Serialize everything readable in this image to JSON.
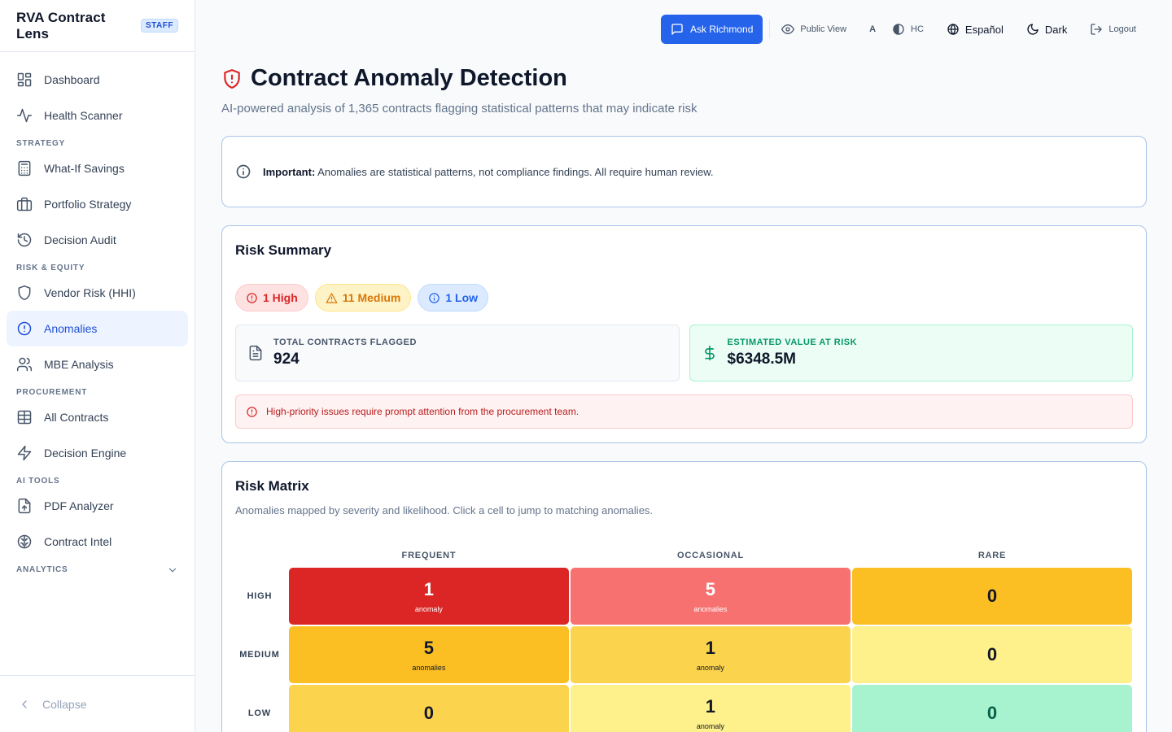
{
  "app": {
    "title": "RVA Contract Lens",
    "badge": "STAFF"
  },
  "sidebar": {
    "items": [
      {
        "label": "Dashboard",
        "icon": "dashboard-icon"
      },
      {
        "label": "Health Scanner",
        "icon": "activity-icon"
      },
      {
        "section": "STRATEGY"
      },
      {
        "label": "What-If Savings",
        "icon": "calculator-icon"
      },
      {
        "label": "Portfolio Strategy",
        "icon": "briefcase-icon"
      },
      {
        "label": "Decision Audit",
        "icon": "history-icon"
      },
      {
        "section": "RISK & EQUITY"
      },
      {
        "label": "Vendor Risk (HHI)",
        "icon": "shield-icon"
      },
      {
        "label": "Anomalies",
        "icon": "alert-circle-icon",
        "active": true
      },
      {
        "label": "MBE Analysis",
        "icon": "users-icon"
      },
      {
        "section": "PROCUREMENT"
      },
      {
        "label": "All Contracts",
        "icon": "table-icon"
      },
      {
        "label": "Decision Engine",
        "icon": "zap-icon"
      },
      {
        "section": "AI TOOLS"
      },
      {
        "label": "PDF Analyzer",
        "icon": "file-upload-icon"
      },
      {
        "label": "Contract Intel",
        "icon": "brain-icon"
      },
      {
        "section": "ANALYTICS"
      }
    ],
    "collapse_label": "Collapse"
  },
  "topbar": {
    "ask": "Ask Richmond",
    "public_view": "Public View",
    "font_size": "A",
    "high_contrast": "HC",
    "language": "Español",
    "theme": "Dark",
    "logout": "Logout"
  },
  "page": {
    "title": "Contract Anomaly Detection",
    "subtitle": "AI-powered analysis of 1,365 contracts flagging statistical patterns that may indicate risk"
  },
  "notice": {
    "bold": "Important:",
    "text": " Anomalies are statistical patterns, not compliance findings. All require human review."
  },
  "summary": {
    "title": "Risk Summary",
    "pill_high": "1 High",
    "pill_medium": "11 Medium",
    "pill_low": "1 Low",
    "flagged_label": "TOTAL CONTRACTS FLAGGED",
    "flagged_value": "924",
    "risk_label": "ESTIMATED VALUE AT RISK",
    "risk_value": "$6348.5M",
    "alert": "High-priority issues require prompt attention from the procurement team."
  },
  "matrix": {
    "title": "Risk Matrix",
    "subtitle": "Anomalies mapped by severity and likelihood. Click a cell to jump to matching anomalies.",
    "columns": [
      "FREQUENT",
      "OCCASIONAL",
      "RARE"
    ],
    "rows": [
      {
        "label": "HIGH",
        "cells": [
          {
            "count": "1",
            "unit": "anomaly",
            "bg": "#dc2626",
            "fg": "#ffffff"
          },
          {
            "count": "5",
            "unit": "anomalies",
            "bg": "#f87171",
            "fg": "#ffffff"
          },
          {
            "count": "0",
            "unit": "",
            "bg": "#fbbf24",
            "fg": "#111827"
          }
        ]
      },
      {
        "label": "MEDIUM",
        "cells": [
          {
            "count": "5",
            "unit": "anomalies",
            "bg": "#fbbf24",
            "fg": "#111827"
          },
          {
            "count": "1",
            "unit": "anomaly",
            "bg": "#fcd34d",
            "fg": "#111827"
          },
          {
            "count": "0",
            "unit": "",
            "bg": "#fef08a",
            "fg": "#111827"
          }
        ]
      },
      {
        "label": "LOW",
        "cells": [
          {
            "count": "0",
            "unit": "",
            "bg": "#fcd34d",
            "fg": "#111827"
          },
          {
            "count": "1",
            "unit": "anomaly",
            "bg": "#fef08a",
            "fg": "#111827"
          },
          {
            "count": "0",
            "unit": "",
            "bg": "#a7f3d0",
            "fg": "#065f46"
          }
        ]
      }
    ]
  }
}
